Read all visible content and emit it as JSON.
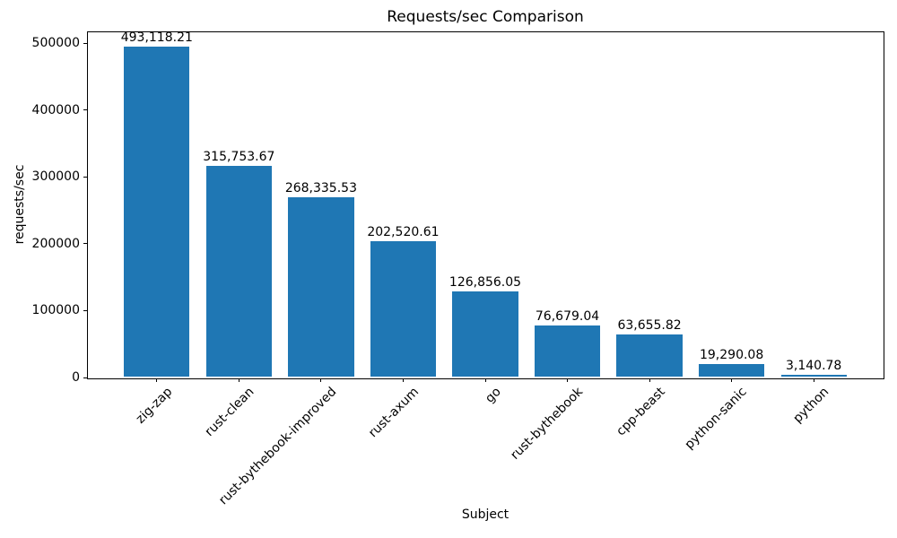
{
  "chart_data": {
    "type": "bar",
    "title": "Requests/sec Comparison",
    "xlabel": "Subject",
    "ylabel": "requests/sec",
    "categories": [
      "zig-zap",
      "rust-clean",
      "rust-bythebook-improved",
      "rust-axum",
      "go",
      "rust-bythebook",
      "cpp-beast",
      "python-sanic",
      "python"
    ],
    "values": [
      493118.21,
      315753.67,
      268335.53,
      202520.61,
      126856.05,
      76679.04,
      63655.82,
      19290.08,
      3140.78
    ],
    "bar_labels": [
      "493,118.21",
      "315,753.67",
      "268,335.53",
      "202,520.61",
      "126,856.05",
      "76,679.04",
      "63,655.82",
      "19,290.08",
      "3,140.78"
    ],
    "yticks": [
      0,
      100000,
      200000,
      300000,
      400000,
      500000
    ],
    "ytick_labels": [
      "0",
      "100000",
      "200000",
      "300000",
      "400000",
      "500000"
    ],
    "ylim": [
      0,
      517774
    ],
    "bar_color": "#1f77b4",
    "axis_color": "#000000",
    "background_color": "#ffffff",
    "grid": false,
    "legend_position": "none"
  }
}
